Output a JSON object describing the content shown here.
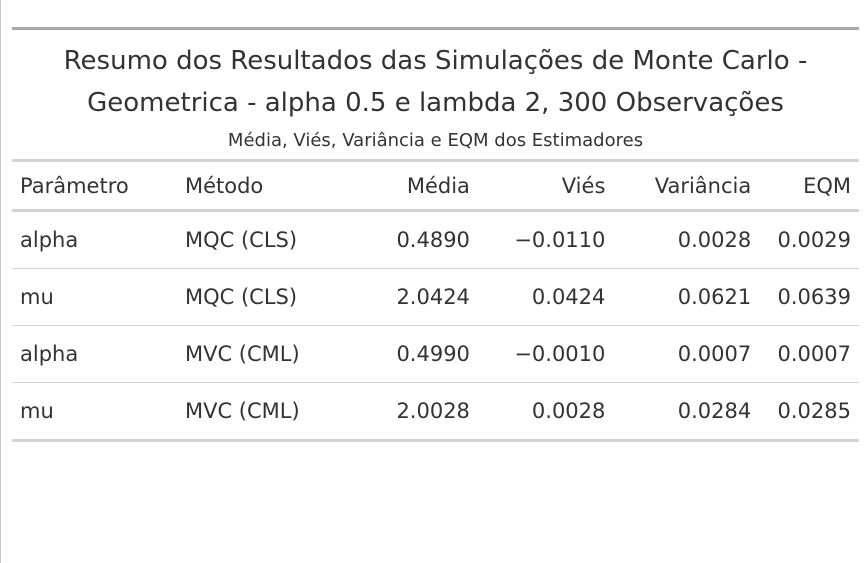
{
  "title_line1": "Resumo dos Resultados das Simulações de Monte Carlo -",
  "title_line2": "Geometrica - alpha 0.5 e lambda 2, 300 Observações",
  "subtitle": "Média, Viés, Variância e EQM dos Estimadores",
  "columns": [
    "Parâmetro",
    "Método",
    "Média",
    "Viés",
    "Variância",
    "EQM"
  ],
  "rows": [
    [
      "alpha",
      "MQC (CLS)",
      "0.4890",
      "−0.0110",
      "0.0028",
      "0.0029"
    ],
    [
      "mu",
      "MQC (CLS)",
      "2.0424",
      "0.0424",
      "0.0621",
      "0.0639"
    ],
    [
      "alpha",
      "MVC (CML)",
      "0.4990",
      "−0.0010",
      "0.0007",
      "0.0007"
    ],
    [
      "mu",
      "MVC (CML)",
      "2.0028",
      "0.0028",
      "0.0284",
      "0.0285"
    ]
  ],
  "colors": {
    "text": "#333333",
    "rule_top": "#a8a8a8",
    "rule": "#d3d3d3"
  }
}
